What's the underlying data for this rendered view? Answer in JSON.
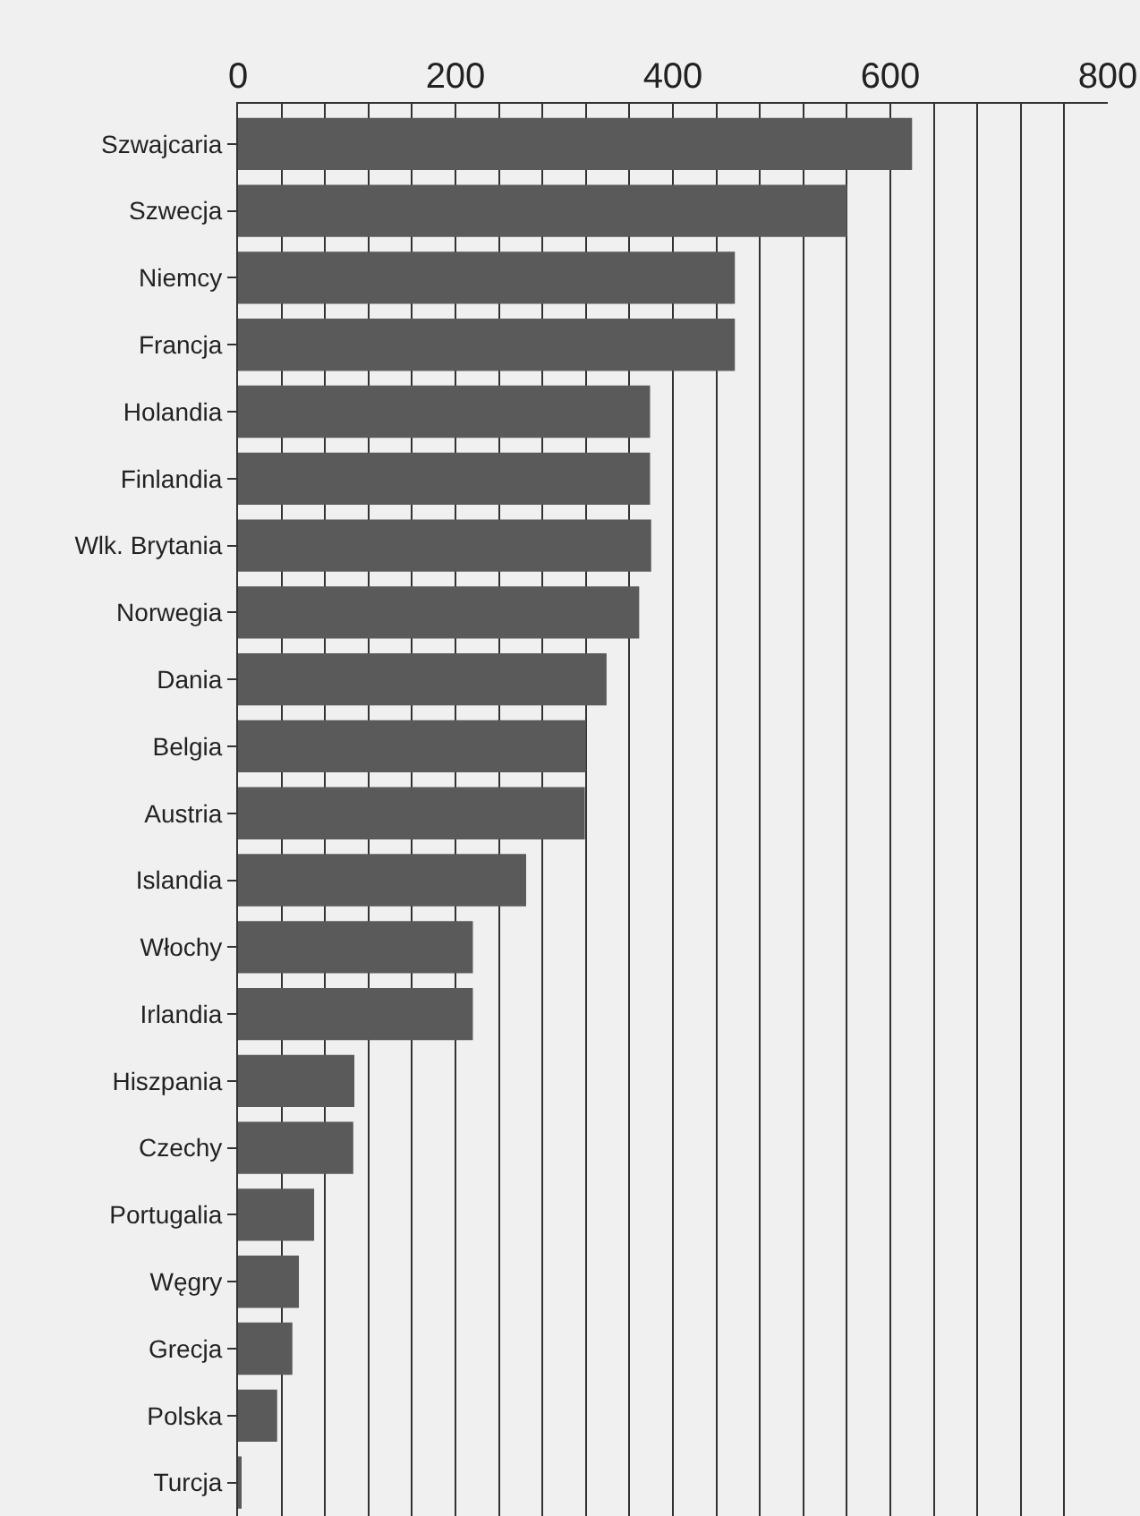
{
  "chart_data": {
    "type": "bar",
    "orientation": "horizontal",
    "categories": [
      "Szwajcaria",
      "Szwecja",
      "Niemcy",
      "Francja",
      "Holandia",
      "Finlandia",
      "Wlk. Brytania",
      "Norwegia",
      "Dania",
      "Belgia",
      "Austria",
      "Islandia",
      "Włochy",
      "Irlandia",
      "Hiszpania",
      "Czechy",
      "Portugalia",
      "Węgry",
      "Grecja",
      "Polska",
      "Turcja"
    ],
    "values": [
      620,
      560,
      457,
      457,
      379,
      379,
      380,
      369,
      339,
      320,
      319,
      265,
      216,
      216,
      107,
      106,
      70,
      56,
      50,
      36,
      2
    ],
    "color": "#5a5a5a",
    "xlim": [
      0,
      800
    ],
    "xticks": [
      0,
      {
        "value": 40,
        "label": null
      },
      {
        "value": 80,
        "label": null
      },
      {
        "value": 120,
        "label": null
      },
      {
        "value": 160,
        "label": null
      },
      200,
      {
        "value": 240,
        "label": null
      },
      {
        "value": 280,
        "label": null
      },
      {
        "value": 320,
        "label": null
      },
      {
        "value": 360,
        "label": null
      },
      400,
      {
        "value": 440,
        "label": null
      },
      {
        "value": 480,
        "label": null
      },
      {
        "value": 520,
        "label": null
      },
      {
        "value": 560,
        "label": null
      },
      600,
      {
        "value": 640,
        "label": null
      },
      {
        "value": 680,
        "label": null
      },
      {
        "value": 720,
        "label": null
      },
      {
        "value": 760,
        "label": null
      },
      800
    ],
    "grid": "x",
    "legend": false
  }
}
